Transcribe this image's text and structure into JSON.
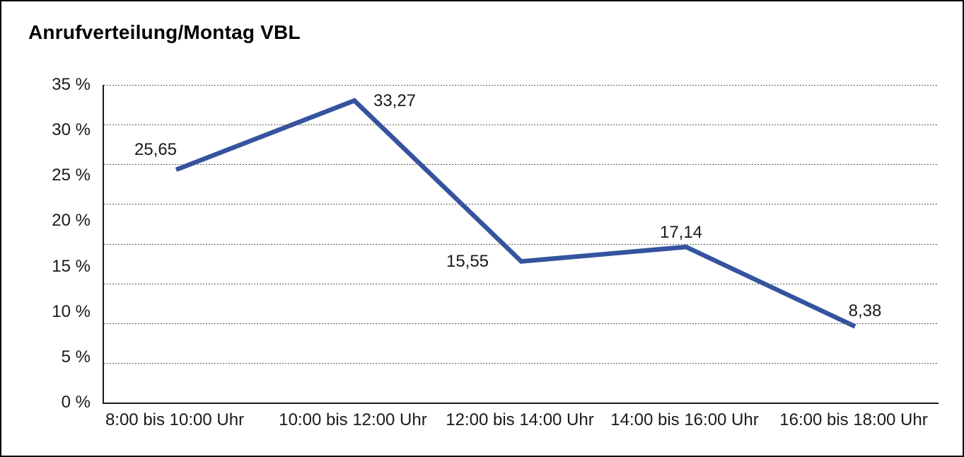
{
  "window": {
    "background": "#ffffff",
    "border_color": "#000000"
  },
  "chart_data": {
    "type": "line",
    "title": "Anrufverteilung/Montag VBL",
    "categories": [
      "8:00 bis 10:00 Uhr",
      "10:00 bis 12:00 Uhr",
      "12:00 bis 14:00 Uhr",
      "14:00 bis 16:00 Uhr",
      "16:00 bis 18:00 Uhr"
    ],
    "values": [
      25.65,
      33.27,
      15.55,
      17.14,
      8.38
    ],
    "value_labels": [
      "25,65",
      "33,27",
      "15,55",
      "17,14",
      "8,38"
    ],
    "y_ticks": [
      0,
      5,
      10,
      15,
      20,
      25,
      30,
      35
    ],
    "y_tick_labels": [
      "0 %",
      "5 %",
      "10 %",
      "15 %",
      "20 %",
      "25 %",
      "30 %",
      "35 %"
    ],
    "ylim": [
      0,
      35
    ],
    "xlabel": "",
    "ylabel": "",
    "grid": "horizontal-dotted",
    "grid_rows": 8,
    "legend": "none",
    "colors": {
      "line": "#34549e",
      "text": "#1a1a1a",
      "grid": "#5a5a5a",
      "axis": "#1a1a1a"
    }
  }
}
